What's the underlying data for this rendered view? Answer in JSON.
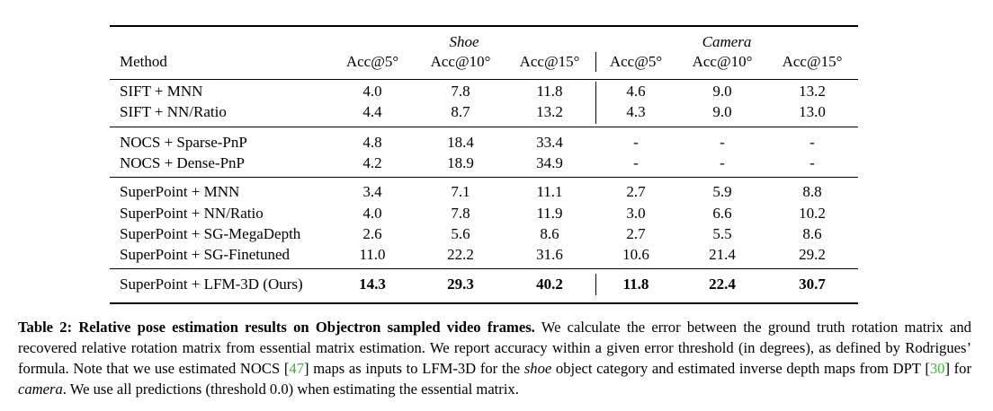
{
  "table": {
    "group_headers": [
      "Shoe",
      "Camera"
    ],
    "column_headers": [
      "Method",
      "Acc@5°",
      "Acc@10°",
      "Acc@15°",
      "Acc@5°",
      "Acc@10°",
      "Acc@15°"
    ],
    "row_groups": [
      [
        {
          "method": "SIFT + MNN",
          "values": [
            "4.0",
            "7.8",
            "11.8",
            "4.6",
            "9.0",
            "13.2"
          ]
        },
        {
          "method": "SIFT + NN/Ratio",
          "values": [
            "4.4",
            "8.7",
            "13.2",
            "4.3",
            "9.0",
            "13.0"
          ]
        }
      ],
      [
        {
          "method": "NOCS + Sparse-PnP",
          "values": [
            "4.8",
            "18.4",
            "33.4",
            "-",
            "-",
            "-"
          ]
        },
        {
          "method": "NOCS + Dense-PnP",
          "values": [
            "4.2",
            "18.9",
            "34.9",
            "-",
            "-",
            "-"
          ]
        }
      ],
      [
        {
          "method": "SuperPoint + MNN",
          "values": [
            "3.4",
            "7.1",
            "11.1",
            "2.7",
            "5.9",
            "8.8"
          ]
        },
        {
          "method": "SuperPoint + NN/Ratio",
          "values": [
            "4.0",
            "7.8",
            "11.9",
            "3.0",
            "6.6",
            "10.2"
          ]
        },
        {
          "method": "SuperPoint + SG-MegaDepth",
          "values": [
            "2.6",
            "5.6",
            "8.6",
            "2.7",
            "5.5",
            "8.6"
          ]
        },
        {
          "method": "SuperPoint + SG-Finetuned",
          "values": [
            "11.0",
            "22.2",
            "31.6",
            "10.6",
            "21.4",
            "29.2"
          ]
        }
      ],
      [
        {
          "method": "SuperPoint + LFM-3D (Ours)",
          "values": [
            "14.3",
            "29.3",
            "40.2",
            "11.8",
            "22.4",
            "30.7"
          ],
          "bold": true
        }
      ]
    ]
  },
  "caption": {
    "label": "Table 2:",
    "title": "Relative pose estimation results on Objectron sampled video frames.",
    "text_1": "We calculate the error between the ground truth rotation matrix and recovered relative rotation matrix from essential matrix estimation. We report accuracy within a given error threshold (in degrees), as defined by Rodrigues’ formula. Note that we use estimated NOCS [",
    "cite_1": "47",
    "text_2": "] maps as inputs to LFM-3D for the ",
    "italic_1": "shoe",
    "text_3": " object category and estimated inverse depth maps from DPT [",
    "cite_2": "30",
    "text_4": "] for ",
    "italic_2": "camera",
    "text_5": ". We use all predictions (threshold 0.0) when estimating the essential matrix."
  }
}
